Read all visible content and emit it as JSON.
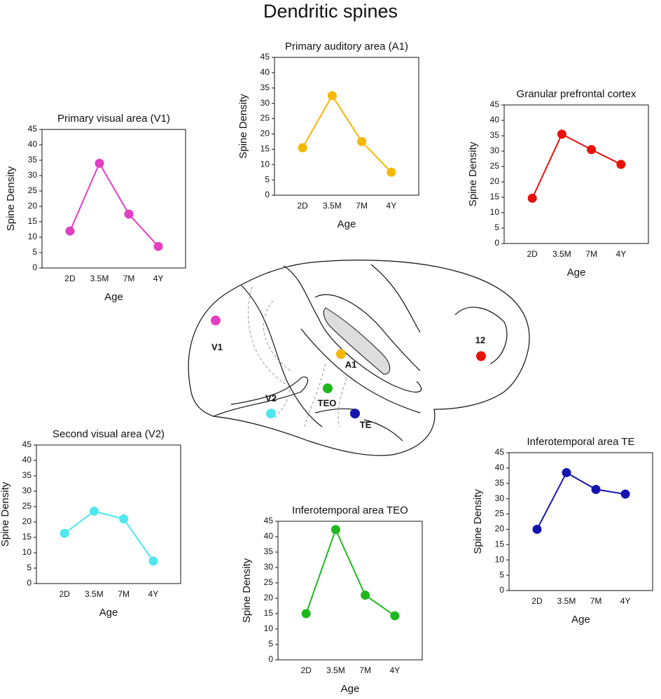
{
  "title": "Dendritic spines",
  "diagram": {
    "labels": [
      "V1",
      "A1",
      "12",
      "V2",
      "TEO",
      "TE"
    ]
  },
  "chart_data": [
    {
      "type": "line",
      "title": "Primary visual area (V1)",
      "xlabel": "Age",
      "ylabel": "Spine Density",
      "categories": [
        "2D",
        "3.5M",
        "7M",
        "4Y"
      ],
      "values": [
        12,
        34,
        17.5,
        7
      ],
      "color": "#e23fc4",
      "ylim": [
        0,
        45
      ],
      "yticks": [
        0,
        5,
        10,
        15,
        20,
        25,
        30,
        35,
        40,
        45
      ]
    },
    {
      "type": "line",
      "title": "Primary auditory area (A1)",
      "xlabel": "Age",
      "ylabel": "Spine Density",
      "categories": [
        "2D",
        "3.5M",
        "7M",
        "4Y"
      ],
      "values": [
        15.5,
        32.5,
        17.5,
        7.5
      ],
      "color": "#f5b700",
      "ylim": [
        0,
        45
      ],
      "yticks": [
        0,
        5,
        10,
        15,
        20,
        25,
        30,
        35,
        40,
        45
      ]
    },
    {
      "type": "line",
      "title": "Granular prefrontal cortex",
      "xlabel": "Age",
      "ylabel": "Spine Density",
      "categories": [
        "2D",
        "3.5M",
        "7M",
        "4Y"
      ],
      "values": [
        14.7,
        35.5,
        30.5,
        25.7
      ],
      "color": "#e8120c",
      "ylim": [
        0,
        45
      ],
      "yticks": [
        0,
        5,
        10,
        15,
        20,
        25,
        30,
        35,
        40,
        45
      ]
    },
    {
      "type": "line",
      "title": "Second visual area (V2)",
      "xlabel": "Age",
      "ylabel": "Spine Density",
      "categories": [
        "2D",
        "3.5M",
        "7M",
        "4Y"
      ],
      "values": [
        16.3,
        23.5,
        21,
        7.3
      ],
      "color": "#4de8ef",
      "ylim": [
        0,
        45
      ],
      "yticks": [
        0,
        5,
        10,
        15,
        20,
        25,
        30,
        35,
        40,
        45
      ]
    },
    {
      "type": "line",
      "title": "Inferotemporal area TEO",
      "xlabel": "Age",
      "ylabel": "Spine Density",
      "categories": [
        "2D",
        "3.5M",
        "7M",
        "4Y"
      ],
      "values": [
        15,
        42.3,
        21,
        14.3
      ],
      "color": "#1fb81f",
      "ylim": [
        0,
        45
      ],
      "yticks": [
        0,
        5,
        10,
        15,
        20,
        25,
        30,
        35,
        40,
        45
      ]
    },
    {
      "type": "line",
      "title": "Inferotemporal area TE",
      "xlabel": "Age",
      "ylabel": "Spine Density",
      "categories": [
        "2D",
        "3.5M",
        "7M",
        "4Y"
      ],
      "values": [
        20,
        38.5,
        33,
        31.5
      ],
      "color": "#1414b0",
      "ylim": [
        0,
        45
      ],
      "yticks": [
        0,
        5,
        10,
        15,
        20,
        25,
        30,
        35,
        40,
        45
      ]
    }
  ]
}
